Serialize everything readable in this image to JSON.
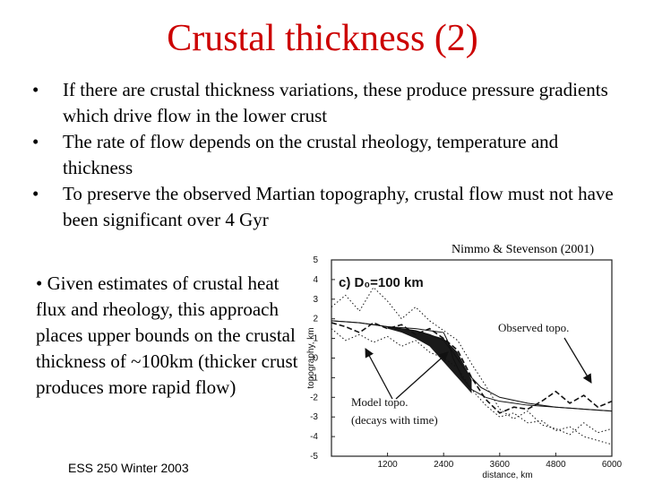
{
  "title": "Crustal thickness (2)",
  "bullets": [
    "If there are crustal thickness variations, these produce pressure gradients which drive flow in the lower crust",
    "The rate of flow depends on the crustal rheology, temperature and thickness",
    "To preserve the observed Martian topography, crustal flow must not have been significant over 4 Gyr"
  ],
  "left_paragraph": "• Given estimates of crustal heat flux and rheology, this approach places upper bounds on the crustal thickness of ~100km (thicker crust produces more rapid flow)",
  "citation": "Nimmo & Stevenson (2001)",
  "footer": "ESS 250 Winter 2003",
  "figure": {
    "panel_label": "c) D₀=100 km",
    "annotations": {
      "observed": "Observed topo.",
      "model_line1": "Model topo.",
      "model_line2": "(decays with time)"
    }
  },
  "chart_data": {
    "type": "line",
    "xlabel": "distance, km",
    "ylabel": "topography, km",
    "xlim": [
      0,
      6000
    ],
    "ylim": [
      -5,
      5
    ],
    "x_ticks": [
      1200,
      2400,
      3600,
      4800,
      6000
    ],
    "y_ticks": [
      5,
      4,
      3,
      2,
      1,
      0,
      -1,
      -2,
      -3,
      -4,
      -5
    ],
    "series": [
      {
        "style": "dashed",
        "x": [
          0,
          300,
          600,
          900,
          1200,
          1500,
          1800,
          2100,
          2400,
          2700,
          3000,
          3300,
          3600,
          3900,
          4200,
          4500,
          4800,
          5100,
          5400,
          5700,
          6000
        ],
        "y": [
          1.8,
          1.6,
          1.3,
          1.8,
          1.5,
          1.7,
          1.2,
          1.5,
          1.0,
          0.4,
          -1.0,
          -2.1,
          -2.8,
          -2.5,
          -2.6,
          -2.2,
          -1.7,
          -2.3,
          -1.9,
          -2.5,
          -2.2
        ]
      },
      {
        "style": "dotted",
        "x": [
          0,
          300,
          600,
          900,
          1200,
          1500,
          1800,
          2100,
          2400,
          2700,
          3000,
          3300,
          3600,
          3900,
          4200,
          4500,
          4800,
          5100,
          5400,
          5700,
          6000
        ],
        "y": [
          2.6,
          3.2,
          2.4,
          3.6,
          2.9,
          2.0,
          2.6,
          1.9,
          1.4,
          0.9,
          -0.3,
          -1.4,
          -2.6,
          -3.1,
          -2.7,
          -3.4,
          -3.6,
          -3.9,
          -3.3,
          -3.8,
          -3.6
        ]
      },
      {
        "style": "dotted",
        "x": [
          0,
          300,
          600,
          900,
          1200,
          1500,
          1800,
          2100,
          2400,
          2700,
          3000,
          3300,
          3600,
          3900,
          4200,
          4500,
          4800,
          5100,
          5400,
          5700,
          6000
        ],
        "y": [
          1.5,
          0.9,
          1.2,
          0.8,
          1.1,
          0.6,
          0.9,
          0.3,
          0.0,
          -0.5,
          -1.6,
          -2.4,
          -3.0,
          -2.8,
          -3.3,
          -3.2,
          -3.7,
          -3.5,
          -4.0,
          -4.2,
          -4.4
        ]
      },
      {
        "style": "solid",
        "x": [
          0,
          600,
          1200,
          1800,
          2100,
          2400,
          2500,
          2600,
          2700,
          2800,
          3000,
          3300,
          3600,
          4200,
          4800,
          5400,
          6000
        ],
        "y": [
          1.9,
          1.8,
          1.6,
          1.5,
          1.4,
          1.3,
          0.8,
          0.0,
          -0.5,
          -1.0,
          -1.6,
          -2.0,
          -2.2,
          -2.4,
          -2.5,
          -2.6,
          -2.7
        ]
      },
      {
        "style": "solid",
        "x": [
          0,
          600,
          1200,
          1800,
          2100,
          2400,
          2600,
          2800,
          3000,
          3200,
          3600,
          4200,
          4800,
          5400,
          6000
        ],
        "y": [
          1.9,
          1.8,
          1.6,
          1.4,
          1.2,
          0.9,
          0.3,
          -0.4,
          -1.0,
          -1.5,
          -2.0,
          -2.3,
          -2.5,
          -2.6,
          -2.7
        ]
      }
    ],
    "band": {
      "x": [
        1200,
        1500,
        1800,
        2100,
        2400,
        2700,
        3000
      ],
      "upper": [
        1.6,
        1.5,
        1.4,
        1.2,
        1.0,
        0.3,
        -1.1
      ],
      "lower": [
        1.5,
        1.3,
        1.0,
        0.6,
        -0.2,
        -1.0,
        -1.8
      ]
    }
  }
}
